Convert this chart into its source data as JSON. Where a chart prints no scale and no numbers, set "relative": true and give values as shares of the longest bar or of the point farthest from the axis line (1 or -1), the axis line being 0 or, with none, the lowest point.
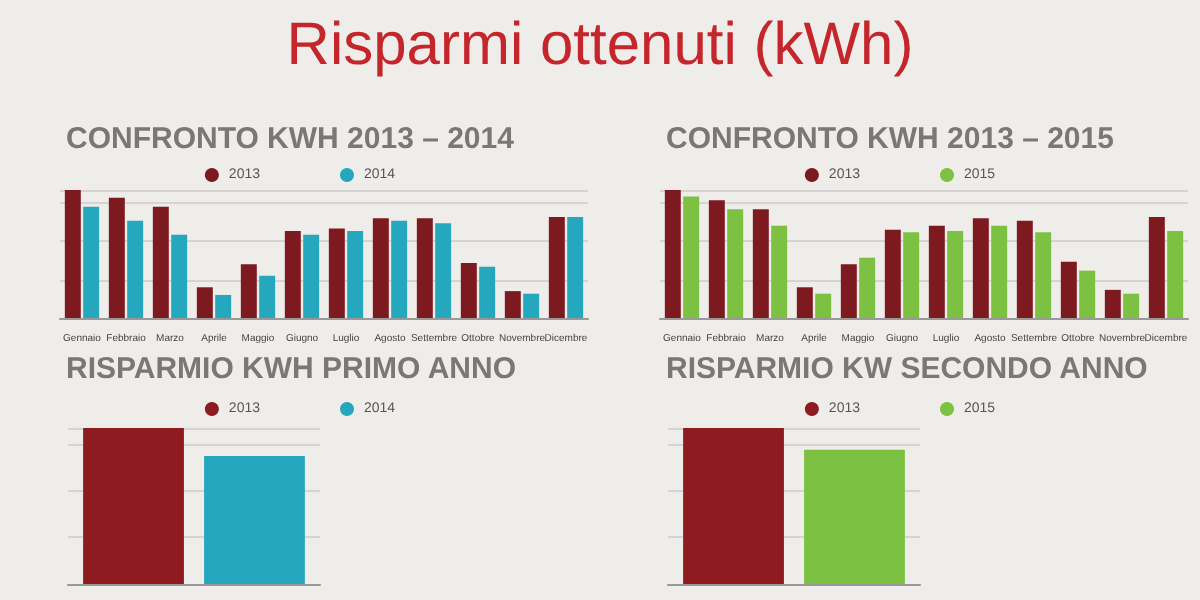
{
  "chart_data": [
    {
      "type": "other",
      "title": "Risparmi ottenuti (kWh)"
    },
    {
      "type": "bar",
      "title": "CONFRONTO KWH 2013 – 2014",
      "relative": true,
      "grid": "y",
      "legend": "top",
      "categories": [
        "Gennaio",
        "Febbraio",
        "Marzo",
        "Aprile",
        "Maggio",
        "Giugno",
        "Luglio",
        "Agosto",
        "Settembre",
        "Ottobre",
        "Novembre",
        "Dicembre"
      ],
      "series": [
        {
          "name": "2013",
          "color": "#7d1a1f",
          "values": [
            1.0,
            0.94,
            0.87,
            0.24,
            0.42,
            0.68,
            0.7,
            0.78,
            0.78,
            0.43,
            0.21,
            0.79
          ]
        },
        {
          "name": "2014",
          "color": "#25a7bd",
          "values": [
            0.87,
            0.76,
            0.65,
            0.18,
            0.33,
            0.65,
            0.68,
            0.76,
            0.74,
            0.4,
            0.19,
            0.79
          ]
        }
      ]
    },
    {
      "type": "bar",
      "title": "CONFRONTO KWH 2013 – 2015",
      "relative": true,
      "grid": "y",
      "legend": "top",
      "categories": [
        "Gennaio",
        "Febbraio",
        "Marzo",
        "Aprile",
        "Maggio",
        "Giugno",
        "Luglio",
        "Agosto",
        "Settembre",
        "Ottobre",
        "Novembre",
        "Dicembre"
      ],
      "series": [
        {
          "name": "2013",
          "color": "#7d1a1f",
          "values": [
            1.0,
            0.92,
            0.85,
            0.24,
            0.42,
            0.69,
            0.72,
            0.78,
            0.76,
            0.44,
            0.22,
            0.79
          ]
        },
        {
          "name": "2015",
          "color": "#7cc142",
          "values": [
            0.95,
            0.85,
            0.72,
            0.19,
            0.47,
            0.67,
            0.68,
            0.72,
            0.67,
            0.37,
            0.19,
            0.68
          ]
        }
      ]
    },
    {
      "type": "bar",
      "title": "RISPARMIO KWH PRIMO ANNO",
      "relative": true,
      "grid": "y",
      "legend": "top",
      "categories": [
        null
      ],
      "series": [
        {
          "name": "2013",
          "color": "#8e1b20",
          "values": [
            1.0
          ]
        },
        {
          "name": "2014",
          "color": "#25a7bd",
          "values": [
            0.82
          ]
        }
      ]
    },
    {
      "type": "bar",
      "title": "RISPARMIO KW SECONDO ANNO",
      "relative": true,
      "grid": "y",
      "legend": "top",
      "categories": [
        null
      ],
      "series": [
        {
          "name": "2013",
          "color": "#8e1b20",
          "values": [
            1.0
          ]
        },
        {
          "name": "2015",
          "color": "#7cc142",
          "values": [
            0.86
          ]
        }
      ]
    }
  ]
}
